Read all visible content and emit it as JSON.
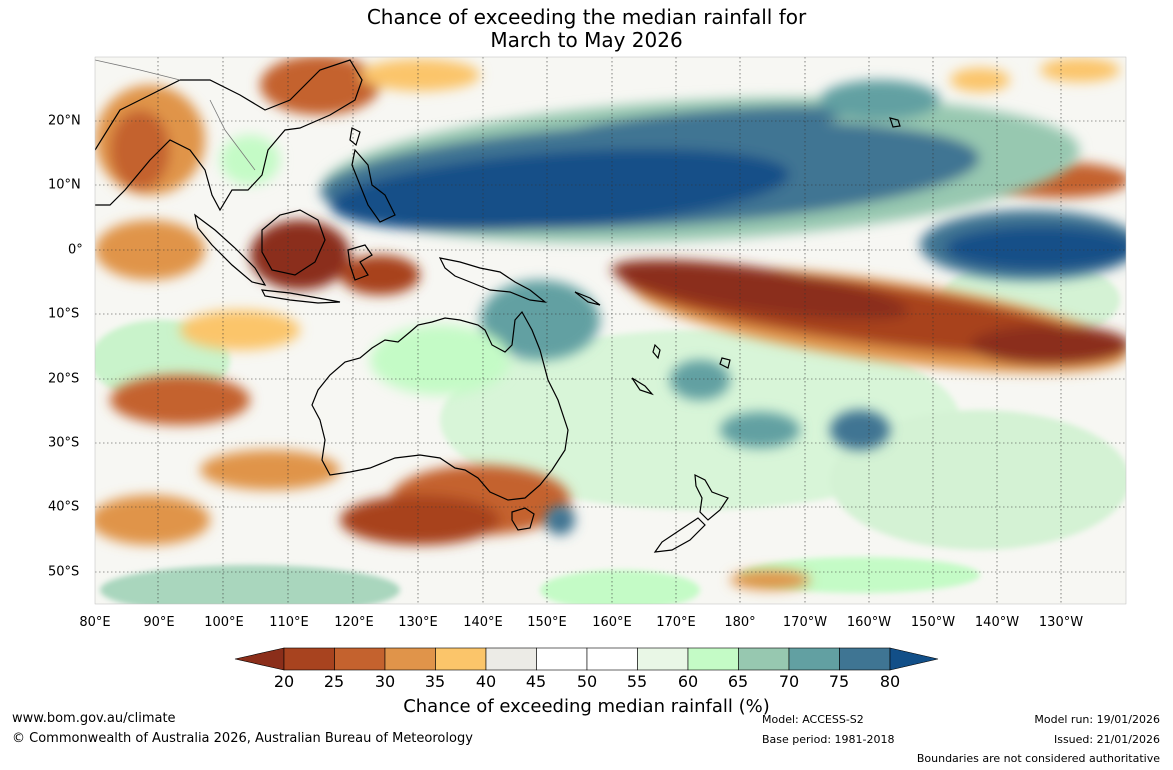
{
  "title": {
    "line1": "Chance of exceeding the median rainfall for",
    "line2": "March to May 2026"
  },
  "map": {
    "lon_labels": [
      "80°E",
      "90°E",
      "100°E",
      "110°E",
      "120°E",
      "130°E",
      "140°E",
      "150°E",
      "160°E",
      "170°E",
      "180°",
      "170°W",
      "160°W",
      "150°W",
      "140°W",
      "130°W"
    ],
    "lat_labels": [
      "20°N",
      "10°N",
      "0°",
      "10°S",
      "20°S",
      "30°S",
      "40°S",
      "50°S"
    ]
  },
  "colorbar": {
    "ticks": [
      "20",
      "25",
      "30",
      "35",
      "40",
      "45",
      "50",
      "55",
      "60",
      "65",
      "70",
      "75",
      "80"
    ],
    "colors": [
      "#8b2e1a",
      "#a8431f",
      "#c4622e",
      "#e0944a",
      "#fbc56a",
      "#ecebe6",
      "#ffffff",
      "#ffffff",
      "#e9f7e6",
      "#c4fbc6",
      "#97c8b0",
      "#62a0a2",
      "#3f7593",
      "#124f88"
    ],
    "label": "Chance of exceeding median rainfall (%)"
  },
  "footer": {
    "website": "www.bom.gov.au/climate",
    "copyright": "© Commonwealth of Australia 2026, Australian Bureau of Meteorology",
    "model": "Model: ACCESS-S2",
    "base_period": "Base period: 1981-2018",
    "model_run": "Model run: 19/01/2026",
    "issued": "Issued: 21/01/2026",
    "disclaimer": "Boundaries are not considered authoritative"
  }
}
